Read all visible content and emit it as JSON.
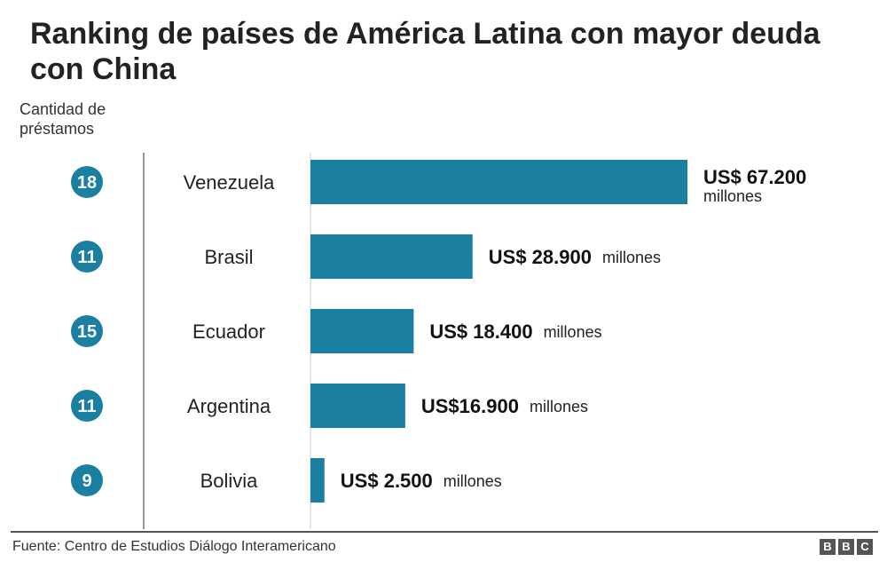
{
  "title": "Ranking de países de América Latina con mayor deuda con China",
  "count_header": "Cantidad de préstamos",
  "source": "Fuente: Centro de Estudios Diálogo Interamericano",
  "brand": [
    "B",
    "B",
    "C"
  ],
  "colors": {
    "bar": "#1a7fa0",
    "badge": "#1a7fa0",
    "text": "#222222",
    "rule": "#555555"
  },
  "chart_data": {
    "type": "bar",
    "orientation": "horizontal",
    "categories": [
      "Venezuela",
      "Brasil",
      "Ecuador",
      "Argentina",
      "Bolivia"
    ],
    "values": [
      67200,
      28900,
      18400,
      16900,
      2500
    ],
    "loan_counts": [
      18,
      11,
      15,
      11,
      9
    ],
    "value_labels": [
      "US$ 67.200",
      "US$ 28.900",
      "US$ 18.400",
      "US$16.900",
      "US$ 2.500"
    ],
    "unit_label": "millones",
    "xlim": [
      0,
      67200
    ],
    "grid": false,
    "legend": "none"
  }
}
